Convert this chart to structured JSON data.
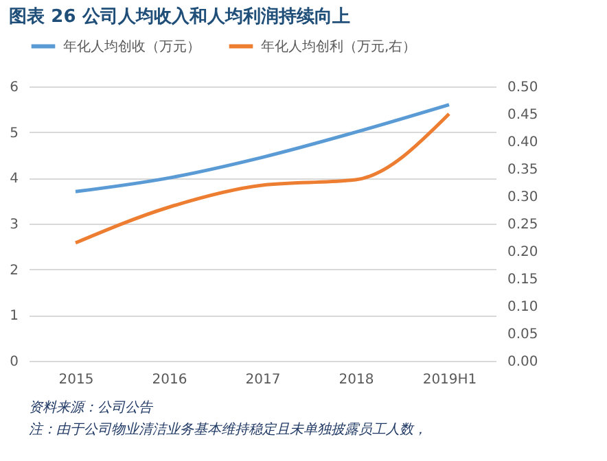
{
  "chart_data": {
    "type": "line",
    "title": "图表 26   公司人均收入和人均利润持续向上",
    "categories": [
      "2015",
      "2016",
      "2017",
      "2018",
      "2019H1"
    ],
    "series": [
      {
        "name": "年化人均创收（万元）",
        "color": "#5b9bd5",
        "values": [
          3.7,
          4.0,
          4.45,
          5.0,
          5.6
        ]
      },
      {
        "name": "年化人均创利（万元,右）",
        "color": "#ed7d31",
        "axis": "y2",
        "values": [
          0.215,
          0.28,
          0.32,
          0.33,
          0.45
        ]
      }
    ],
    "ylim": [
      0,
      6
    ],
    "yticks": [
      0,
      1,
      2,
      3,
      4,
      5,
      6
    ],
    "y2lim": [
      0,
      0.5
    ],
    "y2ticks": [
      {
        "value": 0,
        "label": "0.00"
      },
      {
        "value": 0.05,
        "label": "0.05"
      },
      {
        "value": 0.1,
        "label": "0.10"
      },
      {
        "value": 0.15,
        "label": "0.15"
      },
      {
        "value": 0.2,
        "label": "0.20"
      },
      {
        "value": 0.25,
        "label": "0.25"
      },
      {
        "value": 0.3,
        "label": "0.30"
      },
      {
        "value": 0.35,
        "label": "0.35"
      },
      {
        "value": 0.4,
        "label": "0.40"
      },
      {
        "value": 0.45,
        "label": "0.45"
      },
      {
        "value": 0.5,
        "label": "0.50"
      }
    ],
    "grid": "y",
    "legend": "top",
    "line_style": "solid",
    "marker": "none",
    "annotations": [
      "资料来源：公司公告",
      "注：由于公司物业清洁业务基本维持稳定且未单独披露员工人数，"
    ]
  }
}
